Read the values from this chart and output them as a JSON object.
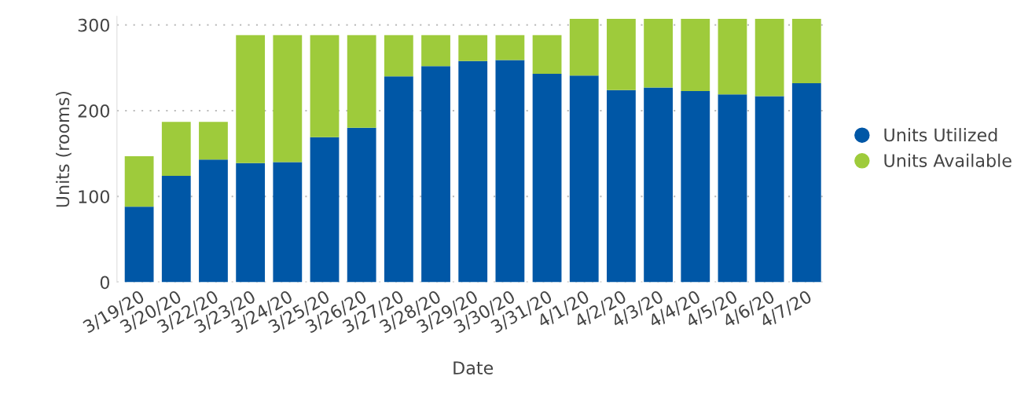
{
  "chart_data": {
    "type": "bar",
    "stacked": true,
    "xlabel": "Date",
    "ylabel": "Units (rooms)",
    "categories": [
      "3/19/20",
      "3/20/20",
      "3/22/20",
      "3/23/20",
      "3/24/20",
      "3/25/20",
      "3/26/20",
      "3/27/20",
      "3/28/20",
      "3/29/20",
      "3/30/20",
      "3/31/20",
      "4/1/20",
      "4/2/20",
      "4/3/20",
      "4/4/20",
      "4/5/20",
      "4/6/20",
      "4/7/20"
    ],
    "series": [
      {
        "name": "Units Utilized",
        "color": "#0057a6",
        "values": [
          88,
          124,
          143,
          139,
          140,
          169,
          180,
          240,
          252,
          258,
          259,
          243,
          241,
          224,
          227,
          223,
          219,
          217,
          232
        ]
      },
      {
        "name": "Units Available",
        "color": "#9ecb3b",
        "values": [
          59,
          63,
          44,
          149,
          148,
          119,
          108,
          48,
          36,
          30,
          29,
          45,
          66,
          83,
          80,
          84,
          88,
          90,
          75
        ]
      }
    ],
    "ylim": [
      0,
      310
    ],
    "yticks": [
      0,
      100,
      200,
      300
    ],
    "grid": "y",
    "legend": "right"
  }
}
